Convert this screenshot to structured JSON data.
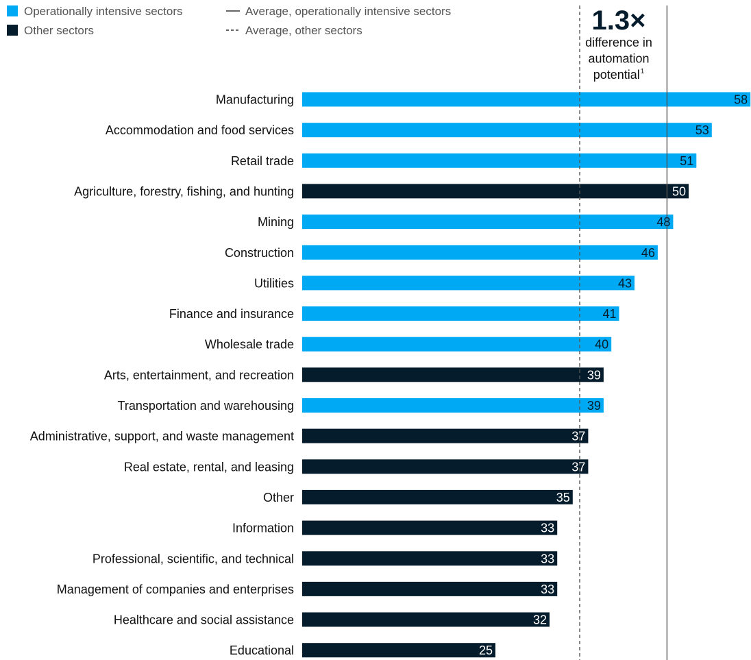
{
  "chart_data": {
    "type": "bar",
    "orientation": "horizontal",
    "categories": [
      "Manufacturing",
      "Accommodation and food services",
      "Retail trade",
      "Agriculture, forestry, fishing, and hunting",
      "Mining",
      "Construction",
      "Utilities",
      "Finance and insurance",
      "Wholesale trade",
      "Arts, entertainment, and recreation",
      "Transportation and warehousing",
      "Administrative, support, and waste management",
      "Real estate, rental, and leasing",
      "Other",
      "Information",
      "Professional, scientific, and technical",
      "Management of companies and enterprises",
      "Healthcare and social assistance",
      "Educational"
    ],
    "values": [
      58,
      53,
      51,
      50,
      48,
      46,
      43,
      41,
      40,
      39,
      39,
      37,
      37,
      35,
      33,
      33,
      33,
      32,
      25
    ],
    "groups": [
      "operational",
      "operational",
      "operational",
      "other",
      "operational",
      "operational",
      "operational",
      "operational",
      "operational",
      "other",
      "operational",
      "other",
      "other",
      "other",
      "other",
      "other",
      "other",
      "other",
      "other"
    ],
    "series": [
      {
        "name": "Operationally intensive sectors",
        "group": "operational",
        "color": "#00a9f4"
      },
      {
        "name": "Other sectors",
        "group": "other",
        "color": "#051c2c"
      }
    ],
    "reference_lines": [
      {
        "name": "Average, operationally intensive sectors",
        "style": "solid",
        "value": 47.2
      },
      {
        "name": "Average, other sectors",
        "style": "dashed",
        "value": 35.9
      }
    ],
    "xlim": [
      0,
      58.2
    ],
    "grid": false,
    "legend_position": "top-left",
    "annotation": {
      "headline": "1.3×",
      "lines": [
        "difference in",
        "automation",
        "potential"
      ],
      "superscript": "1"
    }
  },
  "colors": {
    "operational": "#00a9f4",
    "other": "#051c2c",
    "label_on_light": "#051c2c",
    "label_on_dark": "#ffffff",
    "reference_line": "#555555"
  }
}
